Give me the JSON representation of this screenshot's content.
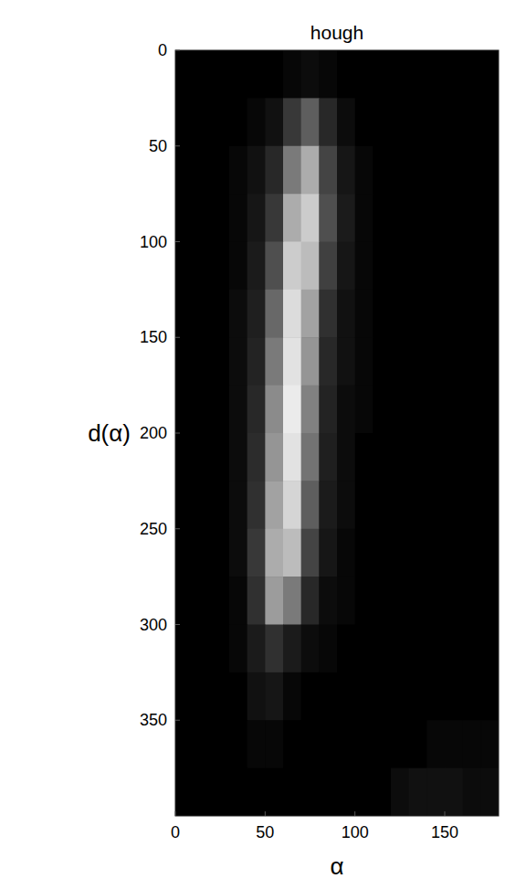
{
  "chart_data": {
    "type": "heatmap",
    "title": "hough",
    "x_label": "α",
    "y_label": "d(α)",
    "xlim": [
      0,
      180
    ],
    "ylim": [
      0,
      400
    ],
    "xticks": [
      0,
      50,
      100,
      150
    ],
    "yticks": [
      0,
      50,
      100,
      150,
      200,
      250,
      300,
      350
    ],
    "grid": false,
    "cells": [
      [
        0,
        0,
        0,
        0,
        0,
        0,
        1,
        2,
        1,
        0,
        0,
        0,
        0,
        0,
        0,
        0,
        0,
        0
      ],
      [
        0,
        0,
        0,
        0,
        1,
        3,
        12,
        22,
        8,
        2,
        0,
        0,
        0,
        0,
        0,
        0,
        0,
        0
      ],
      [
        0,
        0,
        0,
        1,
        3,
        8,
        30,
        45,
        15,
        4,
        1,
        0,
        0,
        0,
        0,
        0,
        0,
        0
      ],
      [
        0,
        0,
        0,
        1,
        4,
        12,
        45,
        55,
        18,
        5,
        1,
        0,
        0,
        0,
        0,
        0,
        0,
        0
      ],
      [
        0,
        0,
        0,
        1,
        5,
        18,
        55,
        50,
        14,
        4,
        1,
        0,
        0,
        0,
        0,
        0,
        0,
        0
      ],
      [
        0,
        0,
        0,
        2,
        6,
        25,
        60,
        42,
        10,
        3,
        1,
        0,
        0,
        0,
        0,
        0,
        0,
        0
      ],
      [
        0,
        0,
        0,
        2,
        7,
        30,
        62,
        38,
        8,
        3,
        1,
        0,
        0,
        0,
        0,
        0,
        0,
        0
      ],
      [
        0,
        0,
        0,
        2,
        8,
        35,
        65,
        32,
        7,
        2,
        1,
        0,
        0,
        0,
        0,
        0,
        0,
        0
      ],
      [
        0,
        0,
        0,
        2,
        9,
        38,
        62,
        28,
        6,
        2,
        0,
        0,
        0,
        0,
        0,
        0,
        0,
        0
      ],
      [
        0,
        0,
        0,
        2,
        10,
        42,
        58,
        22,
        5,
        2,
        0,
        0,
        0,
        0,
        0,
        0,
        0,
        0
      ],
      [
        0,
        0,
        0,
        2,
        12,
        45,
        50,
        15,
        4,
        1,
        0,
        0,
        0,
        0,
        0,
        0,
        0,
        0
      ],
      [
        0,
        0,
        0,
        1,
        10,
        40,
        30,
        8,
        2,
        1,
        0,
        0,
        0,
        0,
        0,
        0,
        0,
        0
      ],
      [
        0,
        0,
        0,
        1,
        5,
        10,
        5,
        2,
        1,
        0,
        0,
        0,
        0,
        0,
        0,
        0,
        0,
        0
      ],
      [
        0,
        0,
        0,
        0,
        3,
        4,
        1,
        0,
        0,
        0,
        0,
        0,
        0,
        0,
        0,
        0,
        0,
        0
      ],
      [
        0,
        0,
        0,
        0,
        1,
        1,
        0,
        0,
        0,
        0,
        0,
        0,
        0,
        0,
        1,
        1,
        1,
        1
      ],
      [
        0,
        0,
        0,
        0,
        0,
        0,
        0,
        0,
        0,
        0,
        0,
        0,
        2,
        3,
        3,
        3,
        2,
        2
      ]
    ]
  }
}
